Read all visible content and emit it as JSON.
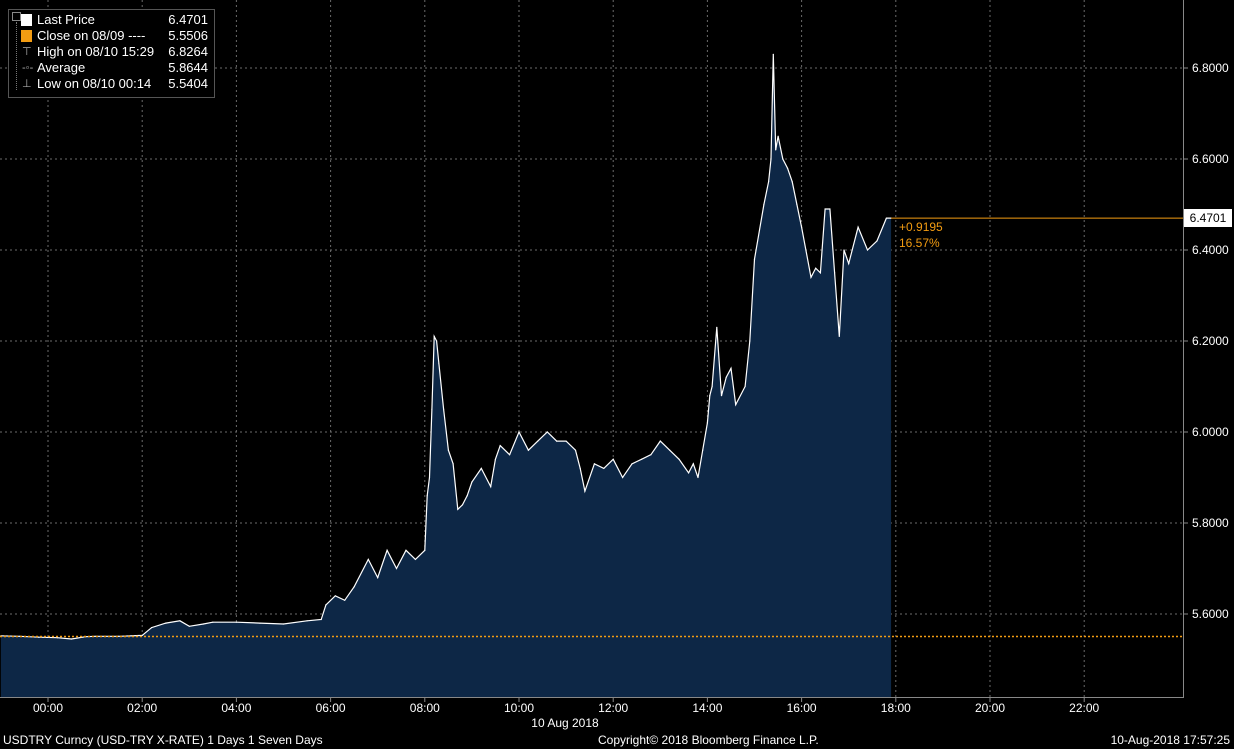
{
  "legend": {
    "items": [
      {
        "label": "Last Price",
        "value": "6.4701"
      },
      {
        "label": "Close on 08/09 ----",
        "value": "5.5506"
      },
      {
        "label": "High on 08/10 15:29",
        "value": "6.8264"
      },
      {
        "label": "Average",
        "value": "5.8644"
      },
      {
        "label": "Low on 08/10 00:14",
        "value": "5.5404"
      }
    ]
  },
  "last_price_tag": "6.4701",
  "change": {
    "abs": "+0.9195",
    "pct": "16.57%"
  },
  "footer": {
    "left": "USDTRY Curncy (USD-TRY X-RATE) 1 Days 1 Seven Days",
    "center": "Copyright© 2018 Bloomberg Finance L.P.",
    "right": "10-Aug-2018 17:57:25"
  },
  "colors": {
    "line": "#ffffff",
    "area": "#0d2746",
    "close_line": "#f39c12",
    "grid": "#6b6b6b",
    "background": "#000000"
  },
  "chart_data": {
    "type": "area",
    "title": "",
    "xlabel": "10 Aug 2018",
    "ylabel": "",
    "x_ticks": [
      "00:00",
      "02:00",
      "04:00",
      "06:00",
      "08:00",
      "10:00",
      "12:00",
      "14:00",
      "16:00",
      "18:00",
      "20:00",
      "22:00"
    ],
    "y_ticks": [
      "5.6000",
      "5.8000",
      "6.0000",
      "6.2000",
      "6.4000",
      "6.6000",
      "6.8000"
    ],
    "xlim": [
      -1.0,
      24.0
    ],
    "ylim": [
      5.42,
      6.94
    ],
    "grid": true,
    "legend_position": "top-left",
    "close_value": 5.5506,
    "series": [
      {
        "name": "Last Price",
        "x": [
          -1.0,
          -0.6,
          -0.2,
          0.2,
          0.5,
          0.8,
          1.0,
          1.5,
          2.0,
          2.2,
          2.5,
          2.8,
          3.0,
          3.3,
          3.5,
          4.0,
          4.5,
          5.0,
          5.5,
          5.8,
          5.9,
          6.1,
          6.3,
          6.5,
          6.8,
          7.0,
          7.2,
          7.4,
          7.6,
          7.8,
          8.0,
          8.05,
          8.1,
          8.15,
          8.2,
          8.25,
          8.3,
          8.4,
          8.5,
          8.6,
          8.7,
          8.8,
          8.9,
          9.0,
          9.2,
          9.4,
          9.5,
          9.6,
          9.8,
          10.0,
          10.2,
          10.4,
          10.6,
          10.8,
          11.0,
          11.2,
          11.3,
          11.4,
          11.6,
          11.8,
          12.0,
          12.2,
          12.4,
          12.6,
          12.8,
          13.0,
          13.2,
          13.4,
          13.6,
          13.7,
          13.8,
          13.9,
          14.0,
          14.05,
          14.1,
          14.2,
          14.3,
          14.4,
          14.5,
          14.6,
          14.8,
          14.9,
          15.0,
          15.2,
          15.3,
          15.35,
          15.4,
          15.45,
          15.5,
          15.6,
          15.7,
          15.8,
          15.9,
          16.0,
          16.2,
          16.3,
          16.4,
          16.5,
          16.6,
          16.7,
          16.8,
          16.9,
          17.0,
          17.2,
          17.4,
          17.6,
          17.8,
          17.9
        ],
        "values": [
          5.552,
          5.551,
          5.549,
          5.548,
          5.545,
          5.55,
          5.551,
          5.551,
          5.553,
          5.57,
          5.58,
          5.585,
          5.573,
          5.578,
          5.582,
          5.582,
          5.58,
          5.578,
          5.585,
          5.588,
          5.62,
          5.64,
          5.63,
          5.66,
          5.72,
          5.68,
          5.74,
          5.7,
          5.74,
          5.72,
          5.74,
          5.86,
          5.9,
          6.05,
          6.21,
          6.2,
          6.15,
          6.05,
          5.96,
          5.93,
          5.83,
          5.84,
          5.86,
          5.89,
          5.92,
          5.88,
          5.94,
          5.97,
          5.95,
          6.0,
          5.96,
          5.98,
          6.0,
          5.98,
          5.98,
          5.96,
          5.92,
          5.87,
          5.93,
          5.92,
          5.94,
          5.9,
          5.93,
          5.94,
          5.95,
          5.98,
          5.96,
          5.94,
          5.91,
          5.93,
          5.9,
          5.96,
          6.02,
          6.08,
          6.1,
          6.23,
          6.08,
          6.12,
          6.14,
          6.06,
          6.1,
          6.2,
          6.38,
          6.5,
          6.55,
          6.6,
          6.83,
          6.62,
          6.65,
          6.6,
          6.58,
          6.55,
          6.5,
          6.45,
          6.34,
          6.36,
          6.35,
          6.49,
          6.49,
          6.35,
          6.21,
          6.4,
          6.37,
          6.45,
          6.4,
          6.42,
          6.47,
          6.47
        ]
      }
    ]
  }
}
